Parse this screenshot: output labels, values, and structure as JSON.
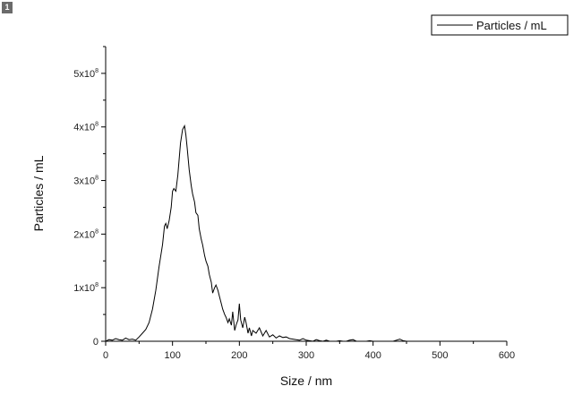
{
  "badge": "1",
  "chart_data": {
    "type": "line",
    "xlabel": "Size / nm",
    "ylabel": "Particles / mL",
    "xlim": [
      0,
      600
    ],
    "ylim": [
      0,
      550000000
    ],
    "x_ticks": [
      0,
      100,
      200,
      300,
      400,
      500,
      600
    ],
    "x_tick_labels": [
      "0",
      "100",
      "200",
      "300",
      "400",
      "500",
      "600"
    ],
    "y_ticks": [
      0,
      100000000,
      200000000,
      300000000,
      400000000,
      500000000
    ],
    "y_tick_labels": [
      {
        "base": "0",
        "exp": ""
      },
      {
        "base": "1x10",
        "exp": "8"
      },
      {
        "base": "2x10",
        "exp": "8"
      },
      {
        "base": "3x10",
        "exp": "8"
      },
      {
        "base": "4x10",
        "exp": "8"
      },
      {
        "base": "5x10",
        "exp": "8"
      }
    ],
    "grid": false,
    "legend_position": "top-right",
    "series": [
      {
        "name": "Particles / mL",
        "color": "#000000",
        "x": [
          0,
          5,
          10,
          15,
          20,
          25,
          30,
          35,
          40,
          45,
          50,
          55,
          60,
          65,
          70,
          75,
          80,
          85,
          88,
          90,
          92,
          95,
          98,
          100,
          102,
          105,
          108,
          110,
          112,
          115,
          118,
          120,
          122,
          125,
          128,
          130,
          133,
          135,
          138,
          140,
          143,
          145,
          148,
          150,
          153,
          155,
          158,
          160,
          163,
          165,
          168,
          170,
          173,
          175,
          178,
          180,
          183,
          185,
          188,
          190,
          193,
          195,
          198,
          200,
          202,
          205,
          208,
          210,
          213,
          215,
          218,
          220,
          225,
          230,
          235,
          240,
          245,
          250,
          255,
          260,
          265,
          270,
          275,
          280,
          285,
          290,
          295,
          300,
          305,
          310,
          315,
          320,
          325,
          330,
          335,
          340,
          345,
          350,
          355,
          360,
          365,
          370,
          375,
          380,
          385,
          390,
          395,
          400,
          410,
          420,
          430,
          435,
          440,
          445,
          450,
          460,
          470,
          480,
          490,
          500,
          510,
          520,
          530,
          540,
          550,
          560,
          570,
          580,
          590,
          600
        ],
        "y": [
          0,
          3000000,
          2000000,
          5000000,
          3000000,
          2000000,
          6000000,
          3000000,
          4000000,
          2000000,
          8000000,
          15000000,
          22000000,
          35000000,
          60000000,
          95000000,
          140000000,
          180000000,
          215000000,
          220000000,
          210000000,
          225000000,
          250000000,
          280000000,
          285000000,
          280000000,
          310000000,
          340000000,
          370000000,
          395000000,
          402000000,
          385000000,
          360000000,
          320000000,
          290000000,
          275000000,
          260000000,
          240000000,
          235000000,
          210000000,
          190000000,
          180000000,
          160000000,
          150000000,
          140000000,
          125000000,
          110000000,
          90000000,
          100000000,
          105000000,
          95000000,
          85000000,
          70000000,
          60000000,
          50000000,
          45000000,
          35000000,
          42000000,
          30000000,
          55000000,
          20000000,
          30000000,
          40000000,
          70000000,
          40000000,
          25000000,
          45000000,
          35000000,
          15000000,
          25000000,
          10000000,
          20000000,
          15000000,
          25000000,
          10000000,
          20000000,
          8000000,
          12000000,
          6000000,
          10000000,
          7000000,
          8000000,
          5000000,
          4000000,
          3000000,
          2000000,
          5000000,
          2000000,
          1000000,
          0,
          3000000,
          1000000,
          0,
          2000000,
          0,
          0,
          0,
          1000000,
          0,
          0,
          2000000,
          3000000,
          0,
          0,
          0,
          0,
          1000000,
          0,
          0,
          0,
          0,
          2000000,
          4000000,
          1000000,
          0,
          0,
          0,
          0,
          0,
          0,
          0,
          0,
          0,
          0,
          0,
          0,
          0,
          0,
          0,
          0
        ]
      }
    ]
  }
}
